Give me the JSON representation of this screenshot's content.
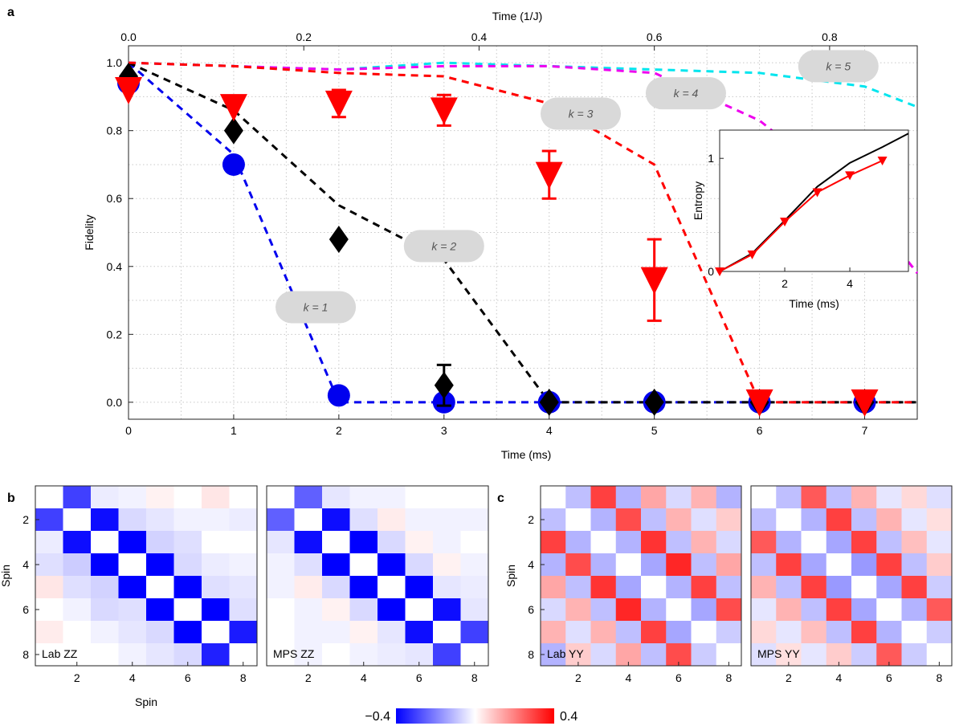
{
  "chart_data": [
    {
      "panel": "a",
      "type": "line",
      "xlabel": "Time (ms)",
      "ylabel": "Fidelity",
      "x2label": "Time (1/J)",
      "xlim": [
        0,
        7.5
      ],
      "ylim": [
        -0.05,
        1.05
      ],
      "xticks": [
        0,
        1,
        2,
        3,
        4,
        5,
        6,
        7
      ],
      "yticks": [
        0.0,
        0.2,
        0.4,
        0.6,
        0.8,
        1.0
      ],
      "x2ticks": [
        0.0,
        0.2,
        0.4,
        0.6,
        0.8
      ],
      "x2_per_ms": 0.12,
      "grid": true,
      "series": [
        {
          "label": "k = 1",
          "color": "#0000ee",
          "marker": "circle",
          "x": [
            0,
            1,
            2,
            3,
            4,
            5,
            6,
            7
          ],
          "y": [
            0.94,
            0.7,
            0.02,
            0.0,
            0.0,
            0.0,
            0.0,
            0.0
          ],
          "err": [
            0,
            0,
            0,
            0,
            0,
            0,
            0,
            0
          ],
          "theory_x": [
            0,
            1,
            2,
            2.15,
            7.5
          ],
          "theory_y": [
            1.0,
            0.73,
            0.0,
            0.0,
            0.0
          ]
        },
        {
          "label": "k = 2",
          "color": "#000000",
          "marker": "diamond",
          "x": [
            0,
            1,
            2,
            3,
            4,
            5,
            6,
            7
          ],
          "y": [
            0.96,
            0.8,
            0.48,
            0.05,
            0.0,
            0.0,
            0.0,
            0.0
          ],
          "err": [
            0,
            0,
            0,
            0.06,
            0,
            0,
            0,
            0
          ],
          "theory_x": [
            0,
            1,
            2,
            3,
            4,
            7.5
          ],
          "theory_y": [
            1.0,
            0.86,
            0.58,
            0.42,
            0.0,
            0.0
          ]
        },
        {
          "label": "k = 3",
          "color": "#ff0000",
          "marker": "triangle-down",
          "x": [
            0,
            1,
            2,
            3,
            4,
            5,
            6,
            7
          ],
          "y": [
            0.92,
            0.87,
            0.88,
            0.86,
            0.67,
            0.36,
            0.0,
            0.0
          ],
          "err": [
            0,
            0,
            0.04,
            0.045,
            0.07,
            0.12,
            0,
            0
          ],
          "theory_x": [
            0,
            1,
            2,
            3,
            4,
            5,
            6,
            7.5
          ],
          "theory_y": [
            1.0,
            0.99,
            0.97,
            0.96,
            0.88,
            0.7,
            0.0,
            0.0
          ]
        },
        {
          "label": "k = 4",
          "color": "#ee00ee",
          "marker": "none",
          "theory_x": [
            0,
            1,
            2,
            3,
            4,
            5,
            6,
            7,
            7.5
          ],
          "theory_y": [
            1.0,
            0.99,
            0.98,
            0.99,
            0.99,
            0.97,
            0.83,
            0.58,
            0.38
          ]
        },
        {
          "label": "k = 5",
          "color": "#00e5ee",
          "marker": "none",
          "theory_x": [
            0,
            1,
            2,
            3,
            4,
            5,
            6,
            7,
            7.5
          ],
          "theory_y": [
            1.0,
            0.99,
            0.98,
            1.0,
            0.99,
            0.98,
            0.97,
            0.93,
            0.87
          ]
        }
      ],
      "bubbles": [
        {
          "text": "k = 1",
          "x": 1.78,
          "y": 0.28
        },
        {
          "text": "k = 2",
          "x": 3.0,
          "y": 0.46
        },
        {
          "text": "k = 3",
          "x": 4.3,
          "y": 0.85
        },
        {
          "text": "k = 4",
          "x": 5.3,
          "y": 0.91
        },
        {
          "text": "k = 5",
          "x": 6.75,
          "y": 0.99
        }
      ]
    },
    {
      "panel": "a-inset",
      "type": "line",
      "xlabel": "Time (ms)",
      "ylabel": "Entropy",
      "xlim": [
        0,
        5.8
      ],
      "ylim": [
        0,
        1.25
      ],
      "xticks": [
        2,
        4
      ],
      "yticks": [
        0,
        1
      ],
      "series": [
        {
          "label": "",
          "color": "#000000",
          "marker": "none",
          "x": [
            0,
            1,
            2,
            3,
            4,
            5,
            5.8
          ],
          "y": [
            0,
            0.16,
            0.45,
            0.75,
            0.96,
            1.1,
            1.22
          ]
        },
        {
          "label": "",
          "color": "#ff0000",
          "marker": "triangle-down",
          "x": [
            0,
            1,
            2,
            3,
            4,
            5
          ],
          "y": [
            0,
            0.15,
            0.44,
            0.7,
            0.85,
            0.98
          ]
        }
      ]
    },
    {
      "panel": "b",
      "type": "heatmap",
      "ylabel": "Spin",
      "xlabel": "Spin",
      "ticks": [
        2,
        4,
        6,
        8
      ],
      "vmin": -0.4,
      "vmax": 0.4,
      "maps": [
        {
          "label": "Lab ZZ",
          "matrix": [
            [
              0,
              -0.3,
              -0.03,
              -0.02,
              0.02,
              0,
              0.04,
              0
            ],
            [
              -0.3,
              0,
              -0.38,
              -0.06,
              -0.04,
              -0.02,
              -0.02,
              -0.03
            ],
            [
              -0.03,
              -0.38,
              0,
              -0.4,
              -0.07,
              -0.05,
              0,
              0
            ],
            [
              -0.05,
              -0.08,
              -0.4,
              0,
              -0.42,
              -0.06,
              -0.03,
              -0.02
            ],
            [
              0.04,
              -0.05,
              -0.07,
              -0.42,
              0,
              -0.42,
              -0.05,
              -0.04
            ],
            [
              0,
              -0.02,
              -0.06,
              -0.05,
              -0.42,
              0,
              -0.4,
              -0.05
            ],
            [
              0.03,
              0,
              -0.02,
              -0.04,
              -0.06,
              -0.4,
              0,
              -0.36
            ],
            [
              0,
              0,
              0,
              -0.02,
              -0.04,
              -0.06,
              -0.35,
              0
            ]
          ]
        },
        {
          "label": "MPS ZZ",
          "matrix": [
            [
              0,
              -0.25,
              -0.04,
              -0.02,
              -0.02,
              0,
              0,
              0
            ],
            [
              -0.25,
              0,
              -0.38,
              -0.05,
              0.03,
              -0.02,
              -0.02,
              -0.02
            ],
            [
              -0.04,
              -0.38,
              0,
              -0.4,
              -0.06,
              0.02,
              -0.02,
              0
            ],
            [
              -0.02,
              -0.05,
              -0.4,
              0,
              -0.42,
              -0.06,
              0.02,
              -0.02
            ],
            [
              -0.02,
              0.03,
              -0.06,
              -0.42,
              0,
              -0.4,
              -0.04,
              -0.03
            ],
            [
              0,
              -0.02,
              0.02,
              -0.06,
              -0.4,
              0,
              -0.38,
              -0.04
            ],
            [
              0,
              -0.02,
              -0.02,
              0.02,
              -0.04,
              -0.38,
              0,
              -0.3
            ],
            [
              0,
              -0.02,
              0,
              -0.02,
              -0.03,
              -0.04,
              -0.3,
              0
            ]
          ]
        }
      ]
    },
    {
      "panel": "c",
      "type": "heatmap",
      "ylabel": "Spin",
      "ticks": [
        2,
        4,
        6,
        8
      ],
      "vmin": -0.4,
      "vmax": 0.4,
      "maps": [
        {
          "label": "Lab YY",
          "matrix": [
            [
              0,
              -0.1,
              0.3,
              -0.12,
              0.14,
              -0.06,
              0.12,
              -0.12
            ],
            [
              -0.1,
              0,
              -0.12,
              0.28,
              -0.1,
              0.12,
              -0.05,
              0.08
            ],
            [
              0.3,
              -0.12,
              0,
              -0.12,
              0.32,
              -0.1,
              0.12,
              -0.06
            ],
            [
              -0.12,
              0.28,
              -0.12,
              0,
              -0.14,
              0.34,
              -0.1,
              0.14
            ],
            [
              0.14,
              -0.1,
              0.32,
              -0.14,
              0,
              -0.12,
              0.3,
              -0.1
            ],
            [
              -0.06,
              0.12,
              -0.1,
              0.34,
              -0.12,
              0,
              -0.14,
              0.28
            ],
            [
              0.12,
              -0.05,
              0.12,
              -0.1,
              0.3,
              -0.14,
              0,
              -0.08
            ],
            [
              -0.12,
              0.08,
              -0.06,
              0.14,
              -0.1,
              0.28,
              -0.08,
              0
            ]
          ]
        },
        {
          "label": "MPS YY",
          "matrix": [
            [
              0,
              -0.1,
              0.26,
              -0.1,
              0.12,
              -0.04,
              0.06,
              -0.05
            ],
            [
              -0.1,
              0,
              -0.12,
              0.3,
              -0.1,
              0.12,
              -0.04,
              0.05
            ],
            [
              0.26,
              -0.12,
              0,
              -0.14,
              0.3,
              -0.1,
              0.1,
              -0.04
            ],
            [
              -0.1,
              0.3,
              -0.14,
              0,
              -0.16,
              0.3,
              -0.1,
              0.08
            ],
            [
              0.12,
              -0.1,
              0.3,
              -0.16,
              0,
              -0.14,
              0.3,
              -0.08
            ],
            [
              -0.04,
              0.12,
              -0.1,
              0.3,
              -0.14,
              0,
              -0.12,
              0.26
            ],
            [
              0.06,
              -0.04,
              0.1,
              -0.1,
              0.3,
              -0.12,
              0,
              -0.08
            ],
            [
              -0.05,
              0.05,
              -0.04,
              0.08,
              -0.08,
              0.26,
              -0.08,
              0
            ]
          ]
        }
      ]
    }
  ],
  "panel_labels": [
    "a",
    "b",
    "c"
  ],
  "colorbar": {
    "min_label": "−0.4",
    "max_label": "0.4",
    "colors": [
      "#0000ff",
      "#ffffff",
      "#ff0000"
    ]
  }
}
